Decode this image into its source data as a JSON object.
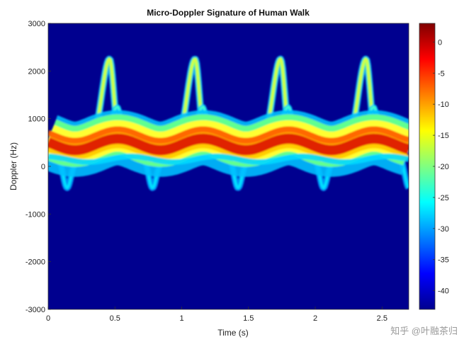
{
  "chart_data": {
    "type": "heatmap",
    "title": "Micro-Doppler Signature of Human Walk",
    "xlabel": "Time (s)",
    "ylabel": "Doppler (Hz)",
    "xlim": [
      0,
      2.7
    ],
    "ylim": [
      -3000,
      3000
    ],
    "xticks": [
      "0",
      "0.5",
      "1",
      "1.5",
      "2",
      "2.5"
    ],
    "yticks": [
      "3000",
      "2000",
      "1000",
      "0",
      "-1000",
      "-2000",
      "-3000"
    ],
    "colorbar": {
      "range": [
        -43,
        3
      ],
      "ticks": [
        "0",
        "-5",
        "-10",
        "-15",
        "-20",
        "-25",
        "-30",
        "-35",
        "-40"
      ],
      "colormap": "jet"
    },
    "gait_period_s": 0.64,
    "cycles": [
      {
        "peak_time": 0.46,
        "peak_doppler": 2400
      },
      {
        "peak_time": 1.1,
        "peak_doppler": 2400
      },
      {
        "peak_time": 1.74,
        "peak_doppler": 2400
      },
      {
        "peak_time": 2.38,
        "peak_doppler": 2400
      }
    ],
    "torso_band_doppler": [
      300,
      700
    ],
    "leg_swing_max_doppler": 2400,
    "min_doppler": -450,
    "background_level": -43
  },
  "watermark": "知乎 @叶融茶归",
  "colors": {
    "background": "#00008f",
    "hot": "#c80000",
    "mid": "#ffff00",
    "cool": "#00c8ff"
  }
}
